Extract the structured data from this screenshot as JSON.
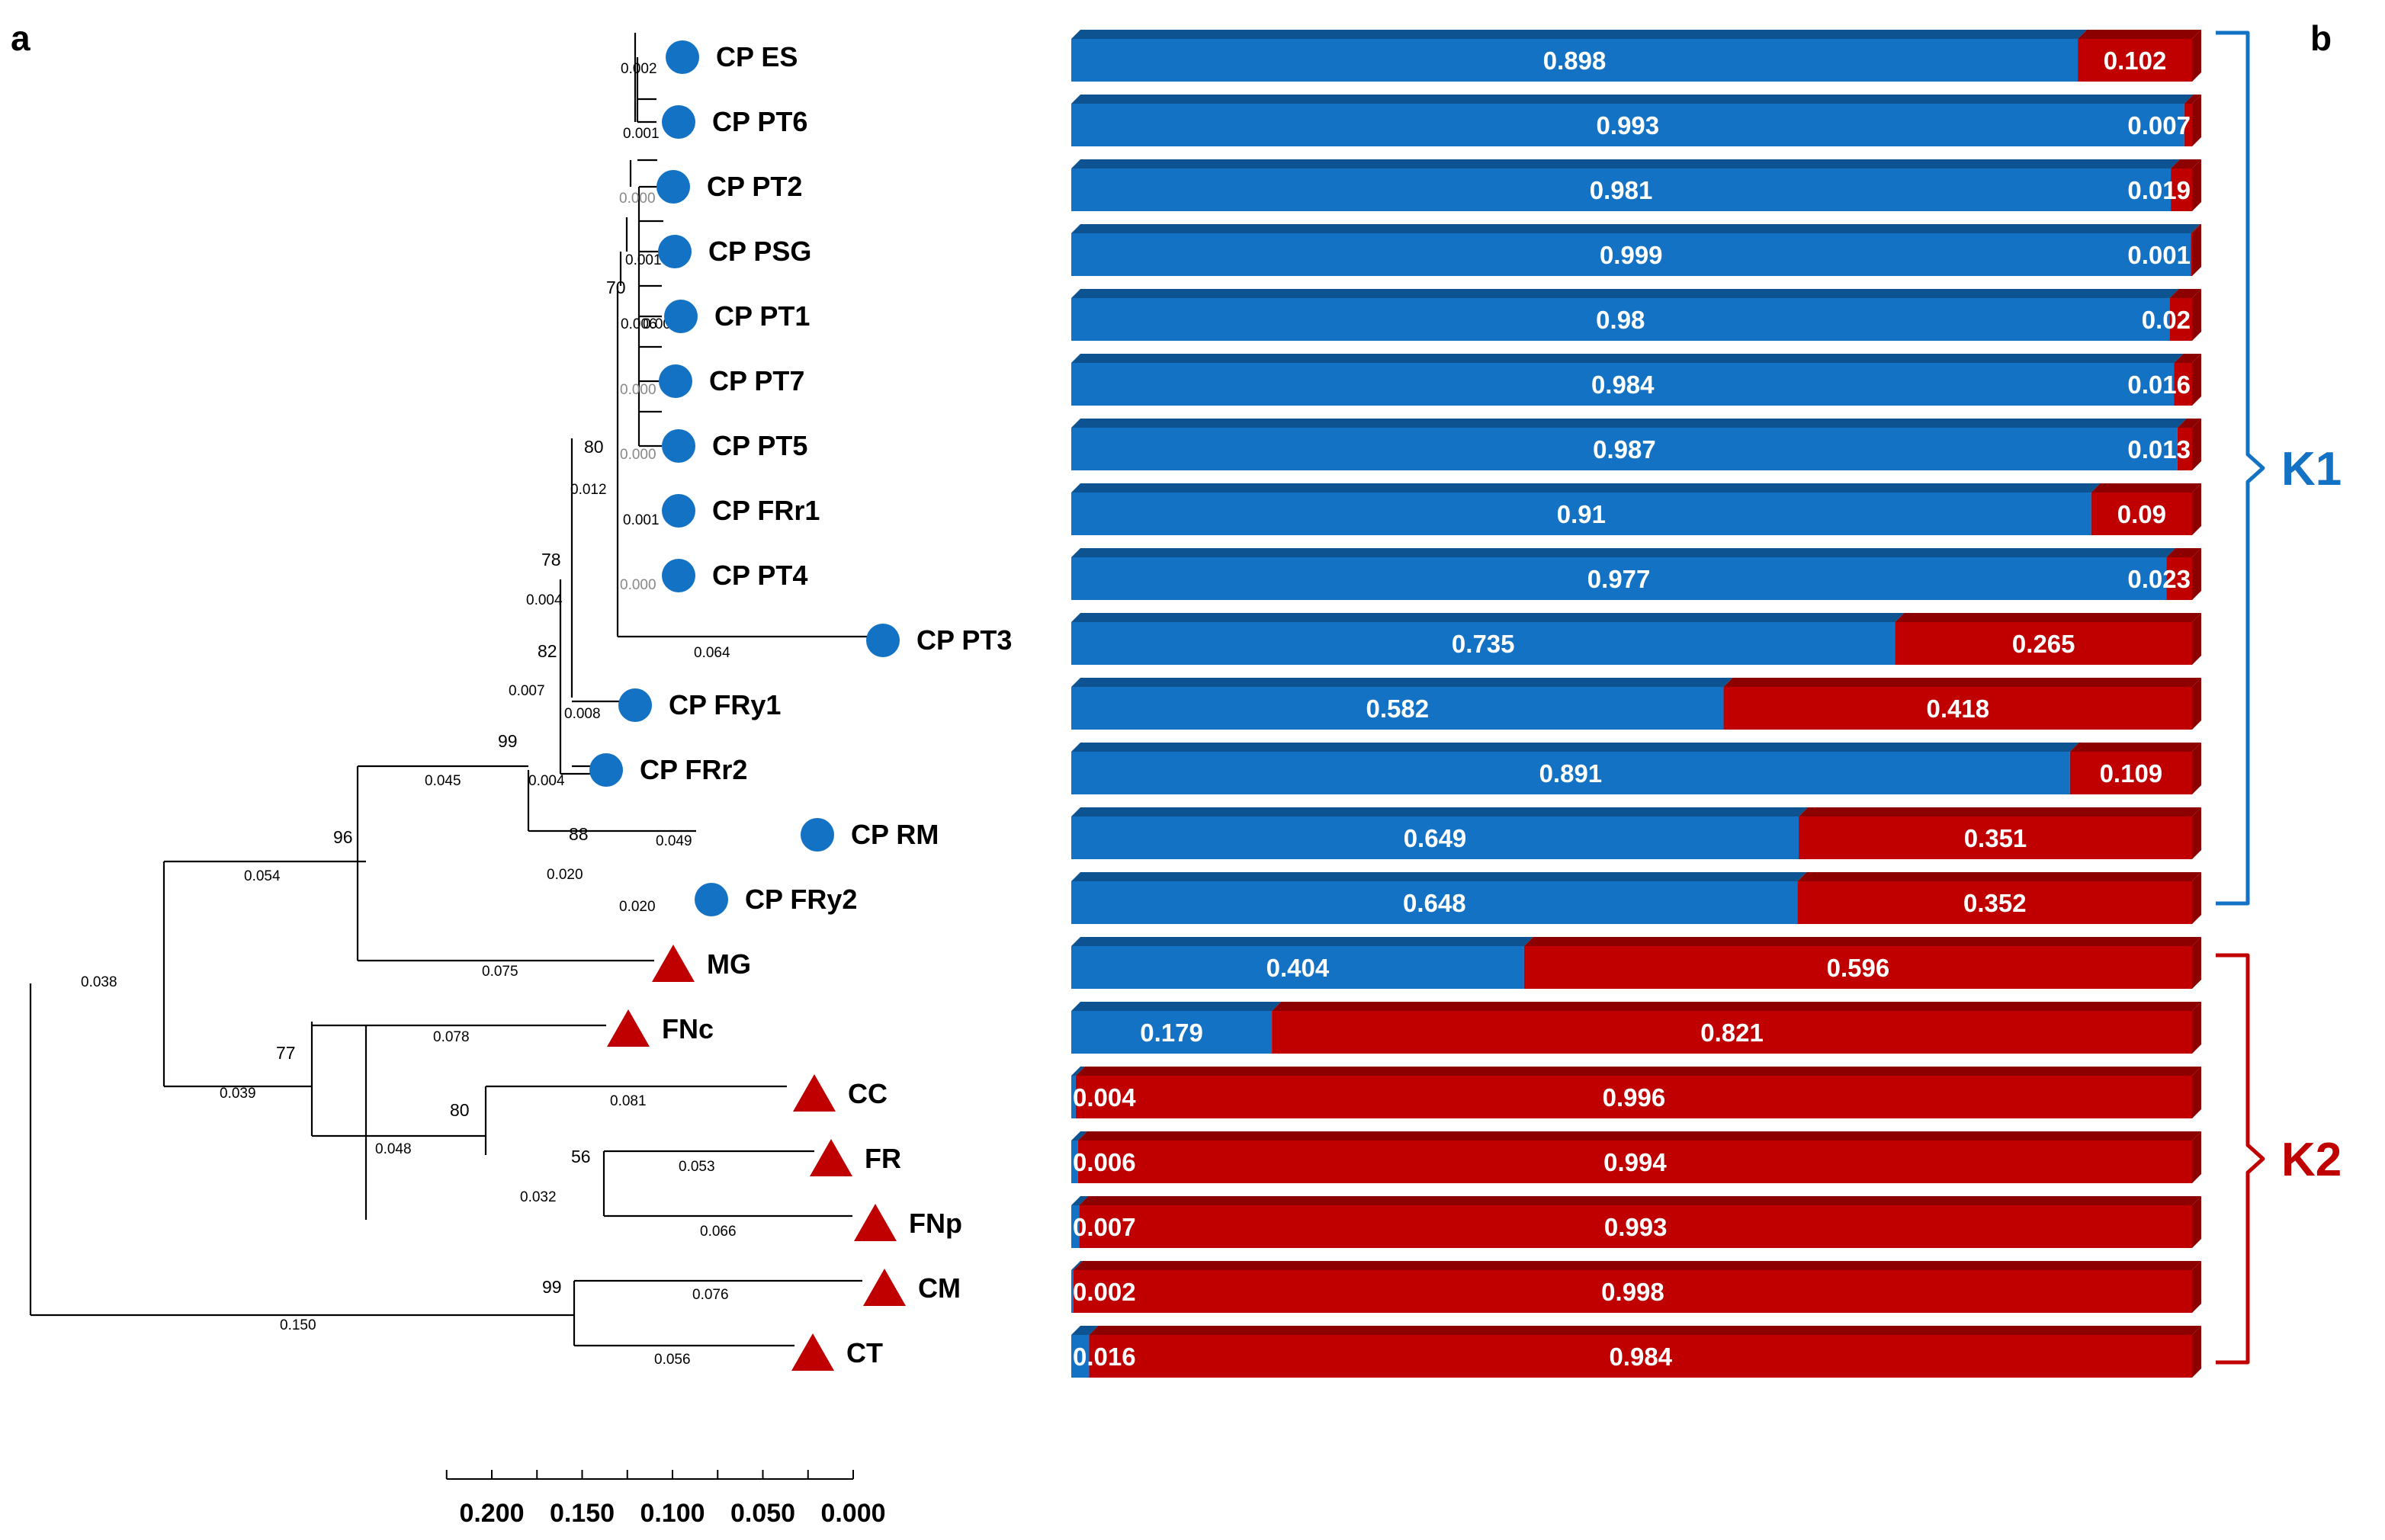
{
  "panel_labels": {
    "a": "a",
    "b": "b"
  },
  "colors": {
    "k1": "#1472c4",
    "k1_dark": "#0d5291",
    "k2": "#c00000",
    "k2_dark": "#8c0000",
    "line": "#000000"
  },
  "chart_data": [
    {
      "type": "dendrogram",
      "panel": "a",
      "axis": {
        "range": [
          0.225,
          0.0
        ],
        "ticks": [
          0.2,
          0.15,
          0.1,
          0.05,
          0.0
        ],
        "tick_labels": [
          "0.200",
          "0.150",
          "0.100",
          "0.050",
          "0.000"
        ]
      },
      "tips": [
        {
          "label": "CP ES",
          "shape": "circle"
        },
        {
          "label": "CP PT6",
          "shape": "circle"
        },
        {
          "label": "CP PT2",
          "shape": "circle"
        },
        {
          "label": "CP PSG",
          "shape": "circle"
        },
        {
          "label": "CP PT1",
          "shape": "circle"
        },
        {
          "label": "CP PT7",
          "shape": "circle"
        },
        {
          "label": "CP PT5",
          "shape": "circle"
        },
        {
          "label": "CP FRr1",
          "shape": "circle"
        },
        {
          "label": "CP PT4",
          "shape": "circle"
        },
        {
          "label": "CP PT3",
          "shape": "circle"
        },
        {
          "label": "CP FRy1",
          "shape": "circle"
        },
        {
          "label": "CP FRr2",
          "shape": "circle"
        },
        {
          "label": "CP RM",
          "shape": "circle"
        },
        {
          "label": "CP FRy2",
          "shape": "circle"
        },
        {
          "label": "MG",
          "shape": "triangle"
        },
        {
          "label": "FNc",
          "shape": "triangle"
        },
        {
          "label": "CC",
          "shape": "triangle"
        },
        {
          "label": "FR",
          "shape": "triangle"
        },
        {
          "label": "FNp",
          "shape": "triangle"
        },
        {
          "label": "CM",
          "shape": "triangle"
        },
        {
          "label": "CT",
          "shape": "triangle"
        }
      ],
      "branch_lengths": [
        "0.002",
        "0.001",
        "0.000",
        "0.001",
        "0.006",
        "0.001",
        "0.000",
        "0.000",
        "0.012",
        "0.001",
        "0.000",
        "0.064",
        "0.004",
        "0.007",
        "0.008",
        "0.004",
        "0.045",
        "0.049",
        "0.020",
        "0.020",
        "0.054",
        "0.075",
        "0.038",
        "0.078",
        "0.039",
        "0.081",
        "0.048",
        "0.053",
        "0.032",
        "0.066",
        "0.076",
        "0.150",
        "0.056"
      ],
      "bootstrap_values": [
        "70",
        "80",
        "78",
        "82",
        "99",
        "88",
        "96",
        "77",
        "80",
        "56",
        "99"
      ]
    },
    {
      "type": "bar",
      "panel": "b",
      "orientation": "horizontal",
      "stacked": true,
      "categories": [
        "CP ES",
        "CP PT6",
        "CP PT2",
        "CP PSG",
        "CP PT1",
        "CP PT7",
        "CP PT5",
        "CP FRr1",
        "CP PT4",
        "CP PT3",
        "CP FRy1",
        "CP FRr2",
        "CP RM",
        "CP FRy2",
        "MG",
        "FNc",
        "CC",
        "FR",
        "FNp",
        "CM",
        "CT"
      ],
      "series": [
        {
          "name": "K1",
          "values": [
            0.898,
            0.993,
            0.981,
            0.999,
            0.98,
            0.984,
            0.987,
            0.91,
            0.977,
            0.735,
            0.582,
            0.891,
            0.649,
            0.648,
            0.404,
            0.179,
            0.004,
            0.006,
            0.007,
            0.002,
            0.016
          ]
        },
        {
          "name": "K2",
          "values": [
            0.102,
            0.007,
            0.019,
            0.001,
            0.02,
            0.016,
            0.013,
            0.09,
            0.023,
            0.265,
            0.418,
            0.109,
            0.351,
            0.352,
            0.596,
            0.821,
            0.996,
            0.994,
            0.993,
            0.998,
            0.984
          ]
        }
      ],
      "value_labels_k1": [
        "0.898",
        "0.993",
        "0.981",
        "0.999",
        "0.98",
        "0.984",
        "0.987",
        "0.91",
        "0.977",
        "0.735",
        "0.582",
        "0.891",
        "0.649",
        "0.648",
        "0.404",
        "0.179",
        "0.004",
        "0.006",
        "0.007",
        "0.002",
        "0.016"
      ],
      "value_labels_k2": [
        "0.102",
        "0.007",
        "0.019",
        "0.001",
        "0.02",
        "0.016",
        "0.013",
        "0.09",
        "0.023",
        "0.265",
        "0.418",
        "0.109",
        "0.351",
        "0.352",
        "0.596",
        "0.821",
        "0.996",
        "0.994",
        "0.993",
        "0.998",
        "0.984"
      ],
      "xlim": [
        0,
        1
      ],
      "clusters": [
        {
          "label": "K1",
          "from": "CP ES",
          "to": "CP FRy2"
        },
        {
          "label": "K2",
          "from": "MG",
          "to": "CT"
        }
      ]
    }
  ]
}
